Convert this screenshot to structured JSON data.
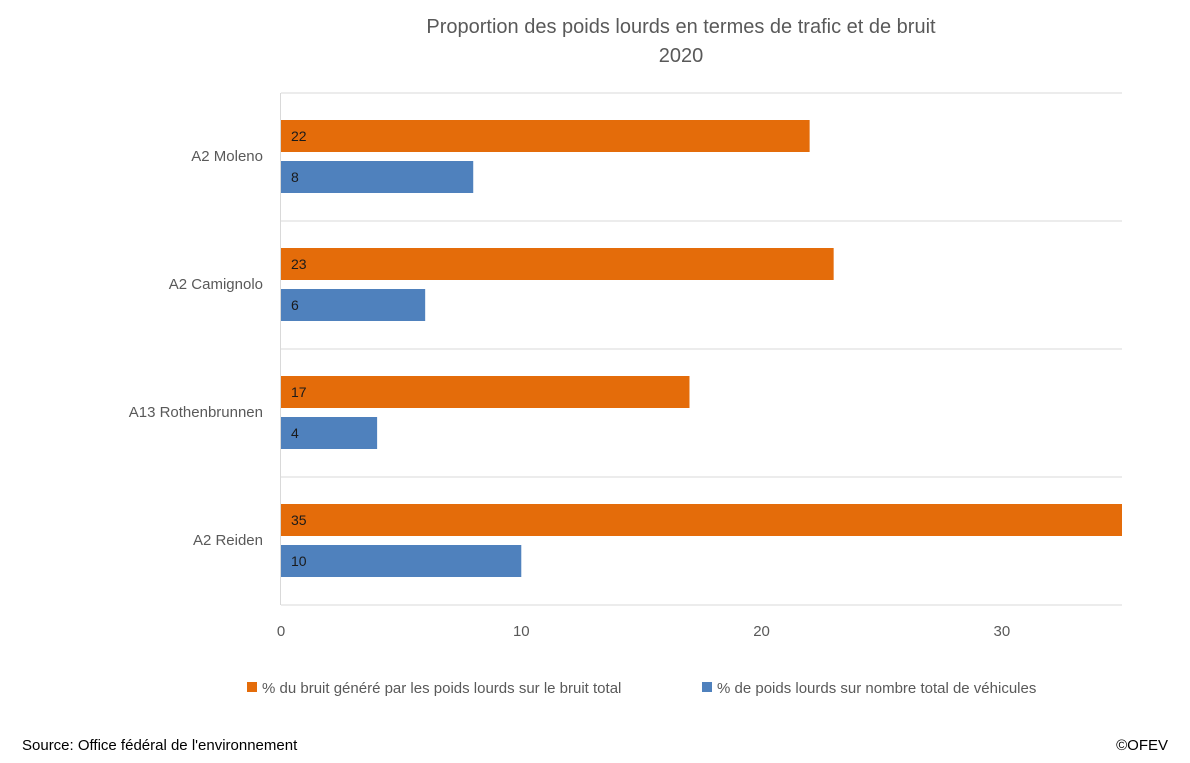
{
  "chart_data": {
    "type": "bar",
    "orientation": "horizontal",
    "title": "Proportion des poids lourds en termes de trafic et de bruit",
    "subtitle": "2020",
    "categories": [
      "A2 Moleno",
      "A2 Camignolo",
      "A13 Rothenbrunnen",
      "A2 Reiden"
    ],
    "series": [
      {
        "name": "% du bruit généré par les poids lourds sur le bruit total",
        "color": "#E46C0A",
        "values": [
          22,
          23,
          17,
          35
        ]
      },
      {
        "name": "% de poids lourds sur nombre total de véhicules",
        "color": "#4F81BD",
        "values": [
          8,
          6,
          4,
          10
        ]
      }
    ],
    "xlim": [
      0,
      35
    ],
    "xticks": [
      0,
      10,
      20,
      30
    ],
    "grid": true,
    "data_labels": true,
    "legend_position": "bottom"
  },
  "footer": {
    "source": "Source: Office fédéral de l'environnement",
    "copyright": "©OFEV"
  }
}
